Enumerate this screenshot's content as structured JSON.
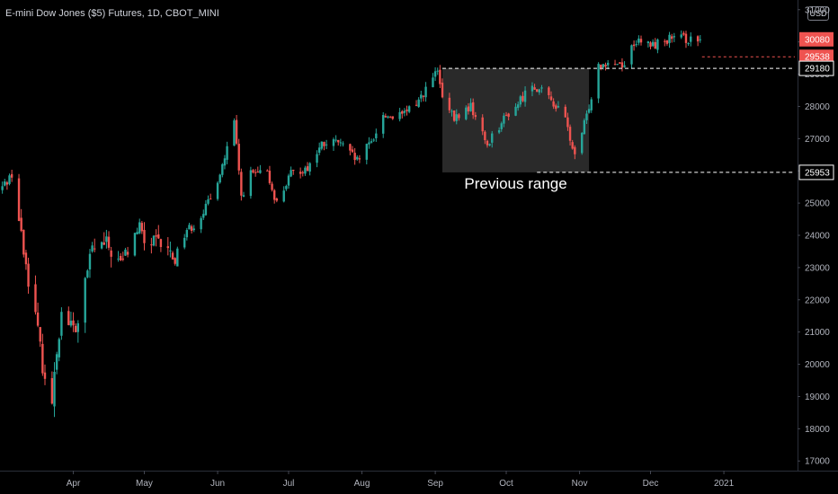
{
  "header": {
    "title": "E-mini Dow Jones ($5) Futures, 1D, CBOT_MINI",
    "currency": "USD"
  },
  "chart_data": {
    "type": "candlestick",
    "title": "E-mini Dow Jones ($5) Futures, 1D, CBOT_MINI",
    "currency": "USD",
    "ylim": [
      16700,
      31300
    ],
    "y_ticks": [
      17000,
      18000,
      19000,
      20000,
      21000,
      22000,
      23000,
      24000,
      25000,
      26000,
      27000,
      28000,
      29000,
      30000,
      31000
    ],
    "y_tick_labels": [
      "17000",
      "18000",
      "19000",
      "20000",
      "21000",
      "22000",
      "23000",
      "24000",
      "25000",
      "26000",
      "27000",
      "28000",
      "29000",
      "30000",
      "31000"
    ],
    "x_ticks": [
      {
        "label": "Apr",
        "date": "2020-04-01"
      },
      {
        "label": "May",
        "date": "2020-05-01"
      },
      {
        "label": "Jun",
        "date": "2020-06-01"
      },
      {
        "label": "Jul",
        "date": "2020-07-01"
      },
      {
        "label": "Aug",
        "date": "2020-08-01"
      },
      {
        "label": "Sep",
        "date": "2020-09-01"
      },
      {
        "label": "Oct",
        "date": "2020-10-01"
      },
      {
        "label": "Nov",
        "date": "2020-11-01"
      },
      {
        "label": "Dec",
        "date": "2020-12-01"
      },
      {
        "label": "2021",
        "date": "2021-01-01"
      }
    ],
    "x_range": [
      "2020-03-01",
      "2021-01-31"
    ],
    "grid": false,
    "up_color": "#26a69a",
    "down_color": "#ef5350",
    "path": [
      [
        "2020-03-01",
        25400
      ],
      [
        "2020-03-06",
        25900
      ],
      [
        "2020-03-11",
        23500
      ],
      [
        "2020-03-16",
        21500
      ],
      [
        "2020-03-19",
        20000
      ],
      [
        "2020-03-23",
        18600
      ],
      [
        "2020-03-24",
        19900
      ],
      [
        "2020-03-27",
        21600
      ],
      [
        "2020-04-02",
        21000
      ],
      [
        "2020-04-09",
        23600
      ],
      [
        "2020-04-15",
        23700
      ],
      [
        "2020-04-21",
        23100
      ],
      [
        "2020-04-29",
        24300
      ],
      [
        "2020-05-01",
        23800
      ],
      [
        "2020-05-08",
        23700
      ],
      [
        "2020-05-14",
        23300
      ],
      [
        "2020-05-19",
        24200
      ],
      [
        "2020-05-22",
        24300
      ],
      [
        "2020-05-29",
        25100
      ],
      [
        "2020-06-04",
        26400
      ],
      [
        "2020-06-08",
        27500
      ],
      [
        "2020-06-11",
        25200
      ],
      [
        "2020-06-15",
        25900
      ],
      [
        "2020-06-22",
        25900
      ],
      [
        "2020-06-26",
        25000
      ],
      [
        "2020-07-02",
        25900
      ],
      [
        "2020-07-09",
        26100
      ],
      [
        "2020-07-15",
        26800
      ],
      [
        "2020-07-22",
        26900
      ],
      [
        "2020-07-30",
        26300
      ],
      [
        "2020-08-05",
        26900
      ],
      [
        "2020-08-10",
        27700
      ],
      [
        "2020-08-18",
        27700
      ],
      [
        "2020-08-25",
        28200
      ],
      [
        "2020-09-02",
        29100
      ],
      [
        "2020-09-04",
        28200
      ],
      [
        "2020-09-09",
        27600
      ],
      [
        "2020-09-16",
        28000
      ],
      [
        "2020-09-23",
        26800
      ],
      [
        "2020-09-25",
        27100
      ],
      [
        "2020-10-01",
        27700
      ],
      [
        "2020-10-05",
        28000
      ],
      [
        "2020-10-12",
        28700
      ],
      [
        "2020-10-20",
        28200
      ],
      [
        "2020-10-26",
        27600
      ],
      [
        "2020-10-30",
        26400
      ],
      [
        "2020-11-04",
        27700
      ],
      [
        "2020-11-09",
        29300
      ],
      [
        "2020-11-13",
        29400
      ],
      [
        "2020-11-20",
        29300
      ],
      [
        "2020-11-24",
        30000
      ],
      [
        "2020-12-02",
        29900
      ],
      [
        "2020-12-09",
        30100
      ],
      [
        "2020-12-16",
        30100
      ],
      [
        "2020-12-21",
        30000
      ],
      [
        "2020-12-22",
        30080
      ]
    ],
    "levels": [
      {
        "value": 30080,
        "label": "30080",
        "style": "last-price"
      },
      {
        "value": 29538,
        "label": "29538",
        "style": "dashed-red"
      },
      {
        "value": 29180,
        "label": "29180",
        "style": "dashed-white"
      },
      {
        "value": 25953,
        "label": "25953",
        "style": "dashed-white"
      }
    ],
    "annotations": [
      {
        "text": "Previous range",
        "box": {
          "from_date": "2020-09-04",
          "to_date": "2020-11-05",
          "low": 25953,
          "high": 29180
        }
      }
    ]
  }
}
